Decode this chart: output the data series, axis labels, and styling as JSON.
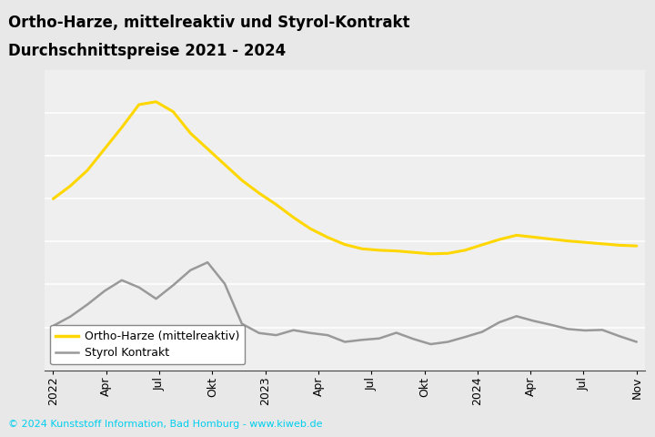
{
  "title_line1": "Ortho-Harze, mittelreaktiv und Styrol-Kontrakt",
  "title_line2": "Durchschnittspreise 2021 - 2024",
  "title_bg": "#FFD700",
  "footer_text": "© 2024 Kunststoff Information, Bad Homburg - www.kiweb.de",
  "footer_bg": "#707070",
  "plot_bg": "#EFEFEF",
  "outer_bg": "#E8E8E8",
  "tick_labels": [
    "2022",
    "Apr",
    "Jul",
    "Okt",
    "2023",
    "Apr",
    "Jul",
    "Okt",
    "2024",
    "Apr",
    "Jul",
    "Nov"
  ],
  "ortho_color": "#FFD700",
  "styrol_color": "#999999",
  "legend_label_ortho": "Ortho-Harze (mittelreaktiv)",
  "legend_label_styrol": "Styrol Kontrakt",
  "ortho_values": [
    1700,
    1790,
    1900,
    2050,
    2200,
    2360,
    2380,
    2310,
    2160,
    2050,
    1940,
    1830,
    1740,
    1660,
    1570,
    1490,
    1430,
    1380,
    1350,
    1340,
    1335,
    1325,
    1315,
    1318,
    1340,
    1378,
    1415,
    1445,
    1432,
    1418,
    1405,
    1395,
    1385,
    1375,
    1370
  ],
  "styrol_values": [
    810,
    875,
    960,
    1055,
    1130,
    1080,
    1000,
    1095,
    1200,
    1255,
    1105,
    825,
    760,
    745,
    780,
    760,
    745,
    698,
    712,
    722,
    762,
    718,
    682,
    698,
    732,
    768,
    835,
    878,
    845,
    818,
    788,
    778,
    782,
    738,
    698
  ],
  "n_points": 35,
  "n_ticks": 12,
  "ylim_min": 500,
  "ylim_max": 2600,
  "grid_lines_y": [
    800,
    1100,
    1400,
    1700,
    2000,
    2300
  ]
}
